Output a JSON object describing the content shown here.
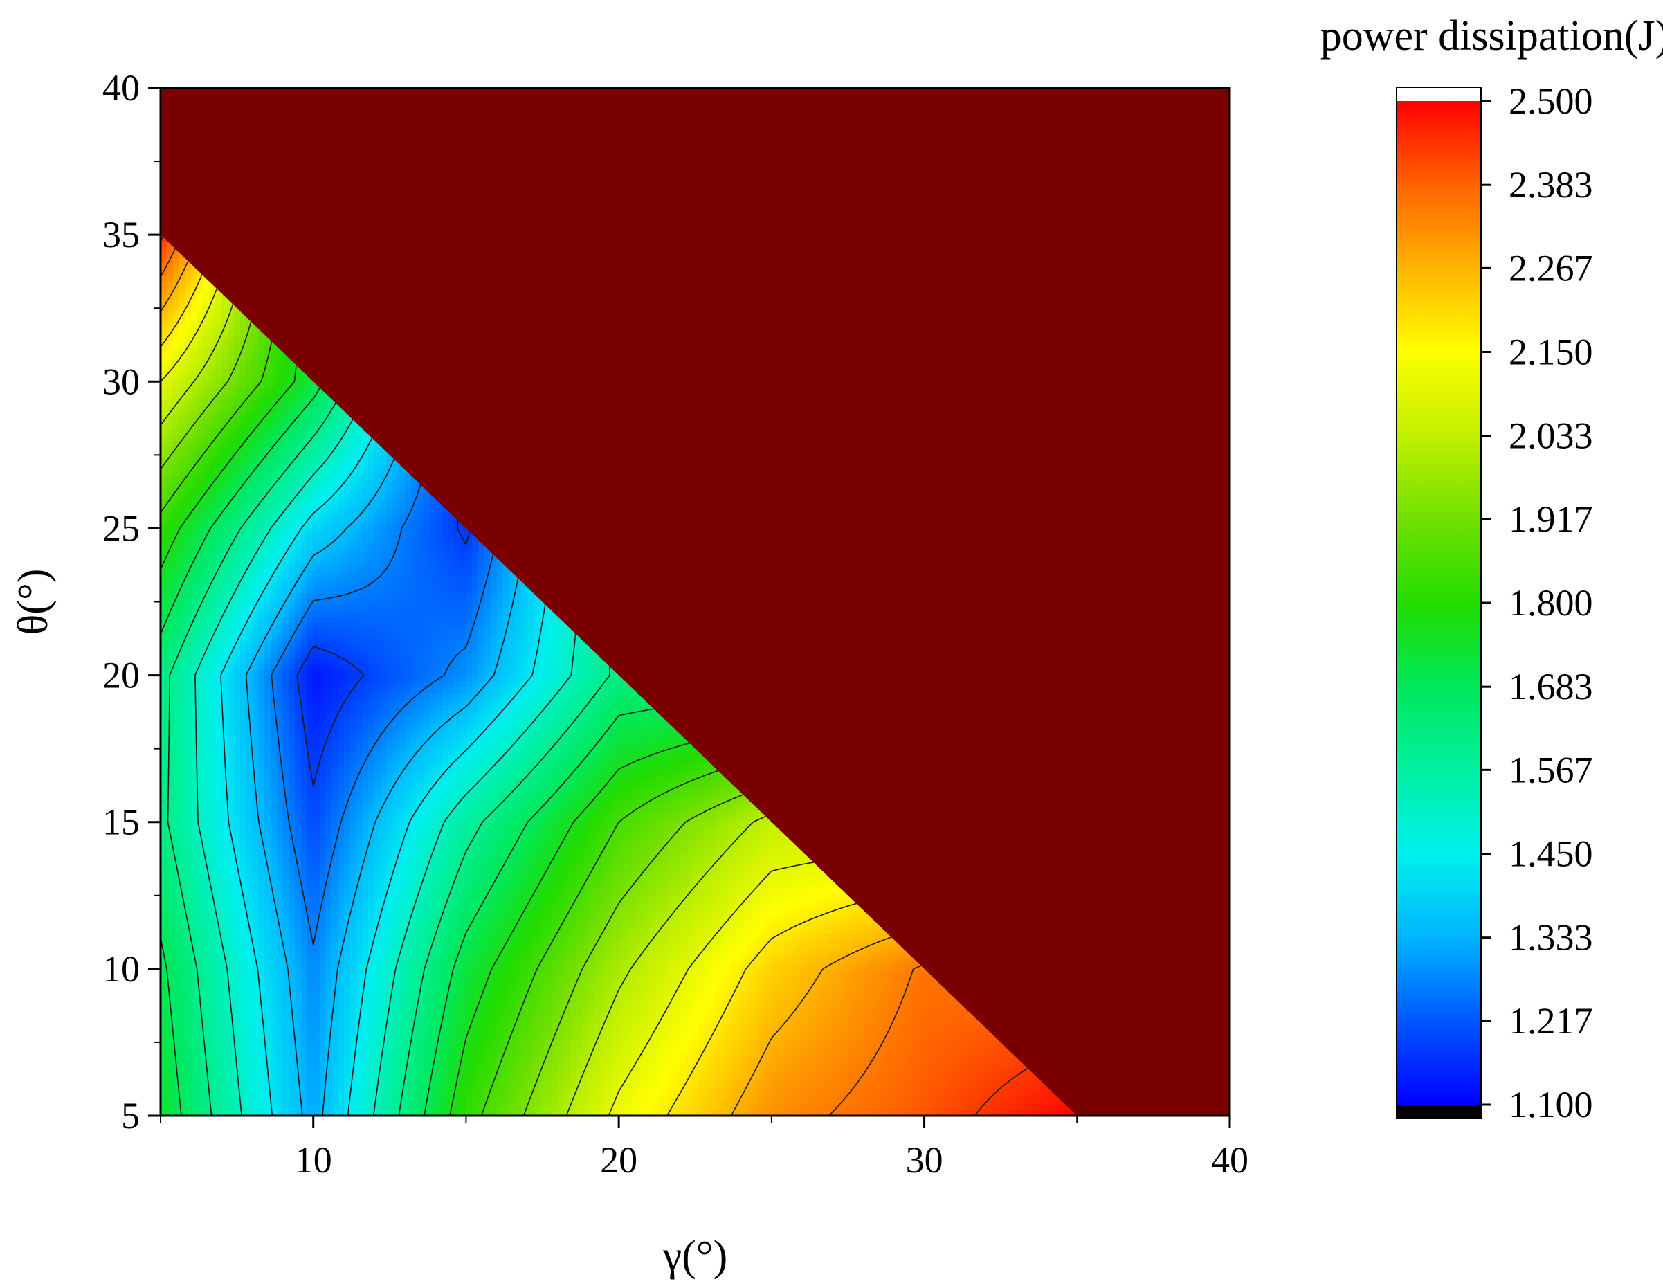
{
  "chart_data": {
    "type": "heatmap",
    "subtype": "filled-contour",
    "title": "",
    "xlabel": "γ(°)",
    "ylabel": "θ(°)",
    "xlim": [
      5,
      40
    ],
    "ylim": [
      5,
      40
    ],
    "x_ticks": [
      "10",
      "20",
      "30",
      "40"
    ],
    "y_ticks": [
      "5",
      "10",
      "15",
      "20",
      "25",
      "30",
      "35",
      "40"
    ],
    "valid_region": "γ + θ ≤ 40",
    "invalid_region_color": "#7a0000",
    "colorbar": {
      "title": "power dissipation(J)",
      "ticks": [
        "2.500",
        "2.383",
        "2.267",
        "2.150",
        "2.033",
        "1.917",
        "1.800",
        "1.683",
        "1.567",
        "1.450",
        "1.333",
        "1.217",
        "1.100"
      ],
      "range": [
        1.1,
        2.5
      ],
      "under_color": "#000000",
      "over_color": "#ffffff",
      "colormap": [
        [
          1.1,
          "#0000ff"
        ],
        [
          1.217,
          "#0057ff"
        ],
        [
          1.333,
          "#00b4ff"
        ],
        [
          1.45,
          "#00f0ef"
        ],
        [
          1.567,
          "#00f0a0"
        ],
        [
          1.683,
          "#00e85a"
        ],
        [
          1.8,
          "#22dc00"
        ],
        [
          1.917,
          "#72e000"
        ],
        [
          2.033,
          "#c0f000"
        ],
        [
          2.15,
          "#ffff00"
        ],
        [
          2.267,
          "#ffb400"
        ],
        [
          2.383,
          "#ff6400"
        ],
        [
          2.5,
          "#ff0000"
        ]
      ]
    },
    "contour_levels": [
      1.183,
      1.267,
      1.35,
      1.433,
      1.517,
      1.6,
      1.683,
      1.767,
      1.85,
      1.933,
      2.017,
      2.1,
      2.183,
      2.267,
      2.35,
      2.433
    ],
    "x": [
      5,
      10,
      15,
      20,
      25,
      30,
      35
    ],
    "y": [
      5,
      10,
      15,
      20,
      25,
      30,
      35
    ],
    "z": [
      [
        1.74,
        1.32,
        1.82,
        2.12,
        2.32,
        2.4,
        2.5
      ],
      [
        1.7,
        1.28,
        1.72,
        2.0,
        2.22,
        2.36,
        null
      ],
      [
        1.62,
        1.2,
        1.57,
        1.85,
        2.04,
        null,
        null
      ],
      [
        1.63,
        1.13,
        1.29,
        1.62,
        null,
        null,
        null
      ],
      [
        1.82,
        1.4,
        1.17,
        null,
        null,
        null,
        null
      ],
      [
        2.1,
        1.72,
        null,
        null,
        null,
        null,
        null
      ],
      [
        2.45,
        null,
        null,
        null,
        null,
        null,
        null
      ]
    ]
  }
}
